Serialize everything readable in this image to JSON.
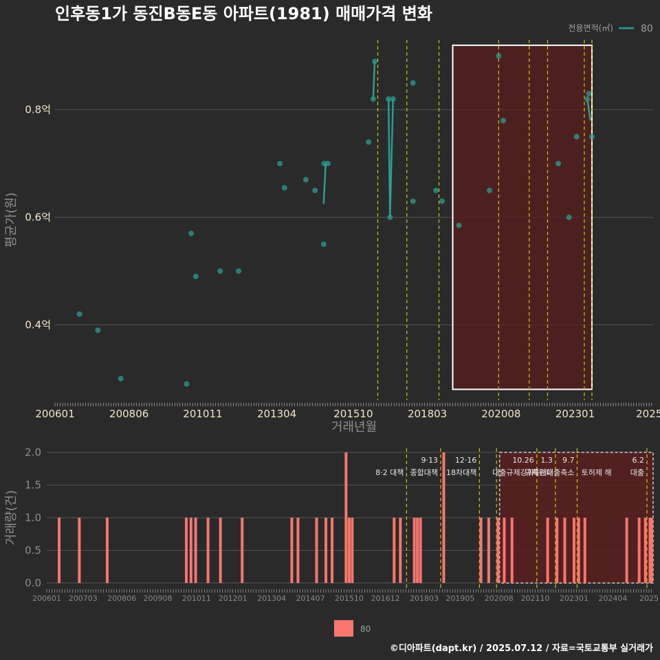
{
  "title": "인후동1가 동진B동E동 아파트(1981) 매매가격 변화",
  "caption": "©디아파트(dapt.kr) / 2025.07.12 / 자료=국토교통부 실거래가",
  "legend_top": {
    "label": "전용면적(㎡)",
    "value": "80"
  },
  "legend_bottom": {
    "value": "80"
  },
  "colors": {
    "background": "#2a2a2b",
    "price_series": "#2a9d93",
    "volume_bar": "#f8766d",
    "volume_bar_highlight": "#ff9a5a",
    "policy_line": "#d4c800",
    "highlight_fill": "#5a1e1e",
    "grid": "#555555"
  },
  "chart_data": [
    {
      "type": "scatter",
      "title": "인후동1가 동진B동E동 아파트(1981) 매매가격 변화",
      "xlabel": "거래년월",
      "ylabel": "평균가(원)",
      "xlim": [
        2006.0,
        2025.55
      ],
      "ylim": [
        0.26,
        0.93
      ],
      "x_ticks": [
        {
          "label": "200601",
          "x": 2006.0
        },
        {
          "label": "200806",
          "x": 2008.42
        },
        {
          "label": "201011",
          "x": 2010.83
        },
        {
          "label": "201304",
          "x": 2013.25
        },
        {
          "label": "201510",
          "x": 2015.75
        },
        {
          "label": "201803",
          "x": 2018.17
        },
        {
          "label": "202008",
          "x": 2020.58
        },
        {
          "label": "202301",
          "x": 2023.0
        },
        {
          "label": "2025",
          "x": 2025.42
        }
      ],
      "y_ticks": [
        {
          "label": "0.4억",
          "y": 0.4
        },
        {
          "label": "0.6억",
          "y": 0.6
        },
        {
          "label": "0.8억",
          "y": 0.8
        }
      ],
      "series": [
        {
          "name": "80",
          "points": [
            {
              "x": 2006.8,
              "y": 0.42
            },
            {
              "x": 2007.4,
              "y": 0.39
            },
            {
              "x": 2008.15,
              "y": 0.3
            },
            {
              "x": 2010.3,
              "y": 0.29
            },
            {
              "x": 2010.45,
              "y": 0.57
            },
            {
              "x": 2010.6,
              "y": 0.49
            },
            {
              "x": 2011.4,
              "y": 0.5
            },
            {
              "x": 2012.0,
              "y": 0.5
            },
            {
              "x": 2013.35,
              "y": 0.7
            },
            {
              "x": 2013.5,
              "y": 0.655
            },
            {
              "x": 2014.2,
              "y": 0.67
            },
            {
              "x": 2014.5,
              "y": 0.65
            },
            {
              "x": 2014.78,
              "y": 0.55
            },
            {
              "x": 2014.8,
              "y": 0.7
            },
            {
              "x": 2014.92,
              "y": 0.7
            },
            {
              "x": 2016.25,
              "y": 0.74
            },
            {
              "x": 2016.4,
              "y": 0.82
            },
            {
              "x": 2016.45,
              "y": 0.89
            },
            {
              "x": 2016.9,
              "y": 0.82
            },
            {
              "x": 2016.95,
              "y": 0.6
            },
            {
              "x": 2017.05,
              "y": 0.82
            },
            {
              "x": 2017.7,
              "y": 0.85
            },
            {
              "x": 2017.7,
              "y": 0.63
            },
            {
              "x": 2018.45,
              "y": 0.65
            },
            {
              "x": 2018.65,
              "y": 0.63
            },
            {
              "x": 2019.2,
              "y": 0.585
            },
            {
              "x": 2020.2,
              "y": 0.65
            },
            {
              "x": 2020.5,
              "y": 0.9
            },
            {
              "x": 2020.65,
              "y": 0.78
            },
            {
              "x": 2022.45,
              "y": 0.7
            },
            {
              "x": 2022.8,
              "y": 0.6
            },
            {
              "x": 2023.05,
              "y": 0.75
            },
            {
              "x": 2023.4,
              "y": 0.82
            },
            {
              "x": 2023.45,
              "y": 0.83
            },
            {
              "x": 2023.55,
              "y": 0.75
            }
          ],
          "lines": [
            [
              {
                "x": 2014.78,
                "y": 0.625
              },
              {
                "x": 2014.85,
                "y": 0.7
              }
            ],
            [
              {
                "x": 2016.4,
                "y": 0.82
              },
              {
                "x": 2016.45,
                "y": 0.89
              }
            ],
            [
              {
                "x": 2016.9,
                "y": 0.82
              },
              {
                "x": 2016.95,
                "y": 0.6
              },
              {
                "x": 2017.05,
                "y": 0.82
              }
            ],
            [
              {
                "x": 2023.4,
                "y": 0.82
              },
              {
                "x": 2023.5,
                "y": 0.78
              }
            ]
          ]
        }
      ],
      "policy_lines_x": [
        2016.55,
        2017.5,
        2018.55,
        2020.5,
        2021.5,
        2022.1,
        2023.3,
        2023.55
      ],
      "highlight": {
        "x0": 2019.0,
        "x1": 2023.55,
        "y0": 0.28,
        "y1": 0.92
      }
    },
    {
      "type": "bar",
      "xlabel": "",
      "ylabel": "거래량(건)",
      "xlim": [
        2006.0,
        2025.55
      ],
      "ylim": [
        0,
        2.0
      ],
      "x_ticks": [
        {
          "label": "200601",
          "x": 2006.0
        },
        {
          "label": "200703",
          "x": 2007.17
        },
        {
          "label": "200806",
          "x": 2008.42
        },
        {
          "label": "200908",
          "x": 2009.58
        },
        {
          "label": "201011",
          "x": 2010.83
        },
        {
          "label": "201201",
          "x": 2012.0
        },
        {
          "label": "201304",
          "x": 2013.25
        },
        {
          "label": "201407",
          "x": 2014.5
        },
        {
          "label": "201510",
          "x": 2015.75
        },
        {
          "label": "201612",
          "x": 2016.92
        },
        {
          "label": "201803",
          "x": 2018.17
        },
        {
          "label": "201905",
          "x": 2019.33
        },
        {
          "label": "202008",
          "x": 2020.58
        },
        {
          "label": "202110",
          "x": 2021.75
        },
        {
          "label": "202301",
          "x": 2023.0
        },
        {
          "label": "202404",
          "x": 2024.25
        },
        {
          "label": "2025",
          "x": 2025.42
        }
      ],
      "y_ticks": [
        {
          "label": "0.0",
          "y": 0.0
        },
        {
          "label": "0.5",
          "y": 0.5
        },
        {
          "label": "1.0",
          "y": 1.0
        },
        {
          "label": "1.5",
          "y": 1.5
        },
        {
          "label": "2.0",
          "y": 2.0
        }
      ],
      "series": [
        {
          "name": "80",
          "bars": [
            {
              "x": 2006.4,
              "y": 1
            },
            {
              "x": 2007.05,
              "y": 1
            },
            {
              "x": 2007.95,
              "y": 1
            },
            {
              "x": 2010.5,
              "y": 1
            },
            {
              "x": 2010.65,
              "y": 1
            },
            {
              "x": 2010.8,
              "y": 1
            },
            {
              "x": 2011.2,
              "y": 1
            },
            {
              "x": 2011.6,
              "y": 1
            },
            {
              "x": 2012.3,
              "y": 1
            },
            {
              "x": 2013.9,
              "y": 1
            },
            {
              "x": 2014.1,
              "y": 1
            },
            {
              "x": 2014.7,
              "y": 1
            },
            {
              "x": 2015.0,
              "y": 1
            },
            {
              "x": 2015.2,
              "y": 1
            },
            {
              "x": 2015.65,
              "y": 2
            },
            {
              "x": 2015.75,
              "y": 1
            },
            {
              "x": 2015.85,
              "y": 1
            },
            {
              "x": 2017.2,
              "y": 1
            },
            {
              "x": 2017.4,
              "y": 1
            },
            {
              "x": 2017.85,
              "y": 1
            },
            {
              "x": 2017.95,
              "y": 1
            },
            {
              "x": 2018.05,
              "y": 1
            },
            {
              "x": 2018.8,
              "y": 2
            },
            {
              "x": 2020.0,
              "y": 1
            },
            {
              "x": 2020.25,
              "y": 1
            },
            {
              "x": 2020.55,
              "y": 1
            },
            {
              "x": 2020.75,
              "y": 1
            },
            {
              "x": 2021.0,
              "y": 1
            },
            {
              "x": 2022.15,
              "y": 1
            },
            {
              "x": 2022.45,
              "y": 1
            },
            {
              "x": 2022.7,
              "y": 1
            },
            {
              "x": 2023.0,
              "y": 1
            },
            {
              "x": 2023.15,
              "y": 1
            },
            {
              "x": 2023.35,
              "y": 1
            },
            {
              "x": 2024.7,
              "y": 1
            },
            {
              "x": 2025.1,
              "y": 1
            },
            {
              "x": 2025.3,
              "y": 1
            },
            {
              "x": 2025.45,
              "y": 1
            },
            {
              "x": 2025.5,
              "y": 1
            }
          ]
        }
      ],
      "policy_lines_x": [
        2017.6,
        2018.7,
        2019.95,
        2020.5,
        2021.8,
        2022.4,
        2023.1,
        2025.35
      ],
      "highlight": {
        "x0": 2020.6,
        "x1": 2025.55,
        "y0": 0,
        "y1": 2.0
      },
      "annotations": [
        {
          "x": 2017.6,
          "line1": "",
          "line2": "8·2 대책"
        },
        {
          "x": 2018.7,
          "line1": "9·13",
          "line2": "종합대책"
        },
        {
          "x": 2019.95,
          "line1": "12·16",
          "line2": "18차대책"
        },
        {
          "x": 2021.8,
          "line1": "10.26",
          "line2": "대출규제강화"
        },
        {
          "x": 2022.4,
          "line1": "1.3",
          "line2": "규제완화"
        },
        {
          "x": 2023.1,
          "line1": "9.7",
          "line2": "특례대출축소"
        },
        {
          "x": 2024.3,
          "line1": "",
          "line2": "토허제 해"
        },
        {
          "x": 2025.35,
          "line1": "6.2",
          "line2": "대출"
        }
      ]
    }
  ]
}
